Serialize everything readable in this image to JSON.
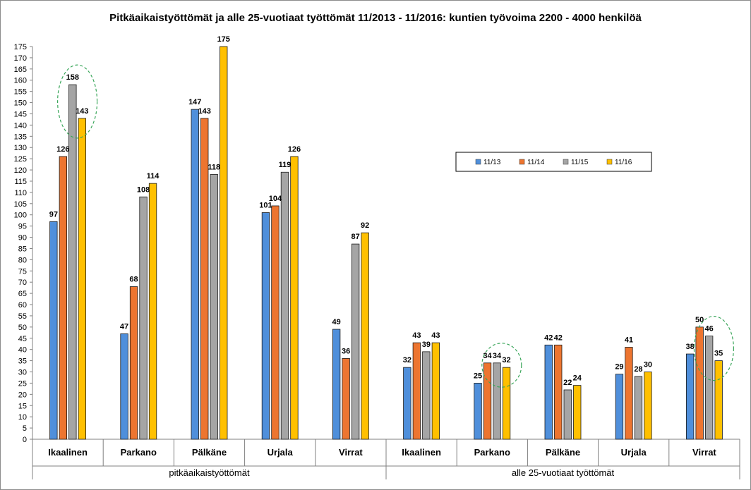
{
  "chart_data": {
    "type": "bar",
    "title": "Pitkäaikaistyöttömät ja alle 25-vuotiaat työttömät 11/2013 - 11/2016: kuntien työvoima 2200 - 4000 henkilöä",
    "groups": [
      {
        "label": "pitkäaikaistyöttömät",
        "categories": [
          "Ikaalinen",
          "Parkano",
          "Pälkäne",
          "Urjala",
          "Virrat"
        ]
      },
      {
        "label": "alle 25-vuotiaat työttömät",
        "categories": [
          "Ikaalinen",
          "Parkano",
          "Pälkäne",
          "Urjala",
          "Virrat"
        ]
      }
    ],
    "categories": [
      "Ikaalinen",
      "Parkano",
      "Pälkäne",
      "Urjala",
      "Virrat",
      "Ikaalinen",
      "Parkano",
      "Pälkäne",
      "Urjala",
      "Virrat"
    ],
    "series": [
      {
        "name": "11/13",
        "color": "#4f8fdb",
        "values": [
          97,
          47,
          147,
          101,
          49,
          32,
          25,
          42,
          29,
          38
        ]
      },
      {
        "name": "11/14",
        "color": "#ed7530",
        "values": [
          126,
          68,
          143,
          104,
          36,
          43,
          34,
          42,
          41,
          50
        ]
      },
      {
        "name": "11/15",
        "color": "#a5a5a5",
        "values": [
          158,
          108,
          118,
          119,
          87,
          39,
          34,
          22,
          28,
          46
        ]
      },
      {
        "name": "11/16",
        "color": "#ffc000",
        "values": [
          143,
          114,
          175,
          126,
          92,
          43,
          32,
          24,
          30,
          35
        ]
      }
    ],
    "ylim": [
      0,
      175
    ],
    "ytick_step": 5,
    "grid": false,
    "legend_position": "right",
    "highlight_color": "#3aa65a",
    "highlights": [
      {
        "category_index": 0,
        "series": [
          "11/15",
          "11/16"
        ]
      },
      {
        "category_index": 6,
        "series": [
          "11/15",
          "11/16"
        ]
      },
      {
        "category_index": 9,
        "series": [
          "11/15",
          "11/16"
        ]
      }
    ]
  }
}
